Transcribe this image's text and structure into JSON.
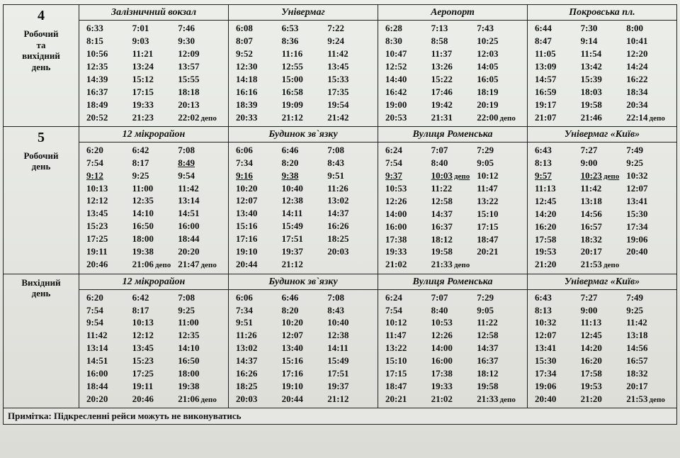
{
  "note": "Примітка: Підкресленні рейси можуть не виконуватись",
  "depo_word": "депо",
  "blocks": [
    {
      "route": "4",
      "label_lines": [
        "Робочий",
        "та",
        "вихідний",
        "день"
      ],
      "stops": [
        {
          "name": "Залізничний  вокзал",
          "rows": [
            [
              "6:33",
              "7:01",
              "7:46"
            ],
            [
              "8:15",
              "9:03",
              "9:30"
            ],
            [
              "10:56",
              "11:21",
              "12:09"
            ],
            [
              "12:35",
              "13:24",
              "13:57"
            ],
            [
              "14:39",
              "15:12",
              "15:55"
            ],
            [
              "16:37",
              "17:15",
              "18:18"
            ],
            [
              "18:49",
              "19:33",
              "20:13"
            ],
            [
              "20:52",
              "21:23",
              {
                "t": "22:02",
                "depo": true
              }
            ]
          ]
        },
        {
          "name": "Універмаг",
          "rows": [
            [
              "6:08",
              "6:53",
              "7:22"
            ],
            [
              "8:07",
              "8:36",
              "9:24"
            ],
            [
              " 9:52",
              "11:16",
              "11:42"
            ],
            [
              "12:30",
              "12:55",
              "13:45"
            ],
            [
              "14:18",
              "15:00",
              "15:33"
            ],
            [
              "16:16",
              "16:58",
              "17:35"
            ],
            [
              "18:39",
              "19:09",
              "19:54"
            ],
            [
              "20:33",
              "21:12",
              "21:42"
            ]
          ]
        },
        {
          "name": "Аеропорт",
          "rows": [
            [
              "6:28",
              "7:13",
              "7:43"
            ],
            [
              "8:30",
              "8:58",
              "10:25"
            ],
            [
              "10:47",
              "11:37",
              "12:03"
            ],
            [
              "12:52",
              "13:26",
              "14:05"
            ],
            [
              "14:40",
              "15:22",
              "16:05"
            ],
            [
              "16:42",
              "17:46",
              "18:19"
            ],
            [
              "19:00",
              "19:42",
              "20:19"
            ],
            [
              "20:53",
              "21:31",
              {
                "t": "22:00",
                "depo": true
              }
            ]
          ]
        },
        {
          "name": "Покровська пл.",
          "rows": [
            [
              "6:44",
              "7:30",
              "8:00"
            ],
            [
              "8:47",
              "9:14",
              "10:41"
            ],
            [
              "11:05",
              "11:54",
              "12:20"
            ],
            [
              "13:09",
              "13:42",
              "14:24"
            ],
            [
              "14:57",
              "15:39",
              "16:22"
            ],
            [
              "16:59",
              "18:03",
              "18:34"
            ],
            [
              "19:17",
              "19:58",
              "20:34"
            ],
            [
              "21:07",
              "21:46",
              {
                "t": "22:14",
                "depo": true
              }
            ]
          ]
        }
      ]
    },
    {
      "route": "5",
      "label_lines": [
        "Робочий",
        "день"
      ],
      "stops": [
        {
          "name": "12 мікрорайон",
          "rows": [
            [
              "6:20",
              "6:42",
              "7:08"
            ],
            [
              "7:54",
              "8:17",
              {
                "t": "8:49",
                "u": true
              }
            ],
            [
              {
                "t": "9:12",
                "u": true
              },
              "9:25",
              "9:54"
            ],
            [
              "10:13",
              "11:00",
              "11:42"
            ],
            [
              "12:12",
              "12:35",
              "13:14"
            ],
            [
              "13:45",
              "14:10",
              "14:51"
            ],
            [
              "15:23",
              "16:50",
              "16:00"
            ],
            [
              "17:25",
              "18:00",
              "18:44"
            ],
            [
              "19:11",
              "19:38",
              "20:20"
            ],
            [
              "20:46",
              {
                "t": "21:06",
                "depo": true
              },
              {
                "t": "21:47",
                "depo": true
              }
            ]
          ]
        },
        {
          "name": "Будинок  зв`язку",
          "rows": [
            [
              "6:06",
              "6:46",
              "7:08"
            ],
            [
              "7:34",
              "8:20",
              "8:43"
            ],
            [
              {
                "t": "9:16",
                "u": true
              },
              {
                "t": "9:38",
                "u": true
              },
              "9:51"
            ],
            [
              "10:20",
              "10:40",
              "11:26"
            ],
            [
              "12:07",
              "12:38",
              "13:02"
            ],
            [
              "13:40",
              "14:11",
              "14:37"
            ],
            [
              "15:16",
              "15:49",
              "16:26"
            ],
            [
              "17:16",
              "17:51",
              "18:25"
            ],
            [
              "19:10",
              "19:37",
              "20:03"
            ],
            [
              "20:44",
              "21:12",
              ""
            ]
          ]
        },
        {
          "name": "Вулиця Роменська",
          "rows": [
            [
              "6:24",
              "7:07",
              "7:29"
            ],
            [
              "7:54",
              "8:40",
              "9:05"
            ],
            [
              {
                "t": "9:37",
                "u": true
              },
              {
                "t": "10:03",
                "depo": true,
                "u": true
              },
              "10:12"
            ],
            [
              "10:53",
              "11:22",
              "11:47"
            ],
            [
              "12:26",
              "12:58",
              "13:22"
            ],
            [
              "14:00",
              "14:37",
              "15:10"
            ],
            [
              "16:00",
              "16:37",
              "17:15"
            ],
            [
              "17:38",
              "18:12",
              "18:47"
            ],
            [
              "19:33",
              "19:58",
              "20:21"
            ],
            [
              "21:02",
              {
                "t": "21:33",
                "depo": true
              },
              ""
            ]
          ]
        },
        {
          "name": "Універмаг  «Київ»",
          "rows": [
            [
              "6:43",
              "7:27",
              "7:49"
            ],
            [
              "8:13",
              "9:00",
              "9:25"
            ],
            [
              {
                "t": "9:57",
                "u": true
              },
              {
                "t": "10:23",
                "depo": true,
                "u": true
              },
              "10:32"
            ],
            [
              "11:13",
              "11:42",
              "12:07"
            ],
            [
              "12:45",
              "13:18",
              "13:41"
            ],
            [
              "14:20",
              "14:56",
              "15:30"
            ],
            [
              "16:20",
              "16:57",
              "17:34"
            ],
            [
              "17:58",
              "18:32",
              "19:06"
            ],
            [
              "19:53",
              "20:17",
              "20:40"
            ],
            [
              "21:20",
              {
                "t": "21:53",
                "depo": true
              },
              ""
            ]
          ]
        }
      ]
    },
    {
      "route": "",
      "label_lines": [
        "Вихідний",
        "день"
      ],
      "stops": [
        {
          "name": "12 мікрорайон",
          "rows": [
            [
              "6:20",
              "6:42",
              "7:08"
            ],
            [
              "7:54",
              "8:17",
              "9:25"
            ],
            [
              "9:54",
              "10:13",
              "11:00"
            ],
            [
              "11:42",
              "12:12",
              "12:35"
            ],
            [
              "13:14",
              "13:45",
              "14:10"
            ],
            [
              "14:51",
              "15:23",
              "16:50"
            ],
            [
              "16:00",
              "17:25",
              "18:00"
            ],
            [
              "18:44",
              "19:11",
              "19:38"
            ],
            [
              "20:20",
              "20:46",
              {
                "t": "21:06",
                "depo": true
              }
            ]
          ]
        },
        {
          "name": "Будинок  зв`язку",
          "rows": [
            [
              "6:06",
              "6:46",
              "7:08"
            ],
            [
              "7:34",
              "8:20",
              "8:43"
            ],
            [
              "9:51",
              "10:20",
              "10:40"
            ],
            [
              "11:26",
              "12:07",
              "12:38"
            ],
            [
              "13:02",
              "13:40",
              "14:11"
            ],
            [
              "14:37",
              "15:16",
              "15:49"
            ],
            [
              "16:26",
              "17:16",
              "17:51"
            ],
            [
              "18:25",
              "19:10",
              "19:37"
            ],
            [
              "20:03",
              "20:44",
              "21:12"
            ]
          ]
        },
        {
          "name": "Вулиця Роменська",
          "rows": [
            [
              "6:24",
              "7:07",
              "7:29"
            ],
            [
              "7:54",
              "8:40",
              "9:05"
            ],
            [
              "10:12",
              "10:53",
              "11:22"
            ],
            [
              "11:47",
              "12:26",
              "12:58"
            ],
            [
              "13:22",
              "14:00",
              "14:37"
            ],
            [
              "15:10",
              "16:00",
              "16:37"
            ],
            [
              "17:15",
              "17:38",
              "18:12"
            ],
            [
              "18:47",
              "19:33",
              "19:58"
            ],
            [
              "20:21",
              "21:02",
              {
                "t": "21:33",
                "depo": true
              }
            ]
          ]
        },
        {
          "name": "Універмаг  «Київ»",
          "rows": [
            [
              "6:43",
              "7:27",
              "7:49"
            ],
            [
              "8:13",
              "9:00",
              "9:25"
            ],
            [
              "10:32",
              "11:13",
              "11:42"
            ],
            [
              "12:07",
              "12:45",
              "13:18"
            ],
            [
              "13:41",
              "14:20",
              "14:56"
            ],
            [
              "15:30",
              "16:20",
              "16:57"
            ],
            [
              "17:34",
              "17:58",
              "18:32"
            ],
            [
              "19:06",
              "19:53",
              "20:17"
            ],
            [
              "20:40",
              "21:20",
              {
                "t": "21:53",
                "depo": true
              }
            ]
          ]
        }
      ]
    }
  ]
}
